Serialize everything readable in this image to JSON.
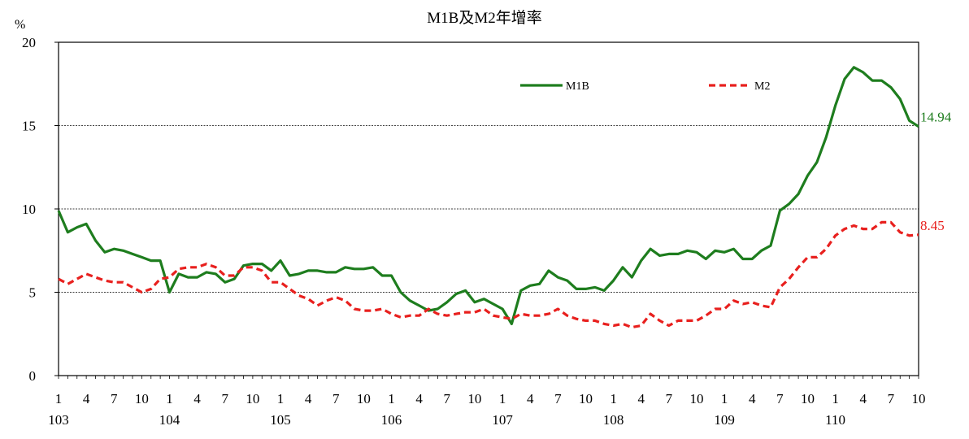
{
  "chart_data": {
    "type": "line",
    "title": "M1B及M2年增率",
    "ylabel": "%",
    "ylim": [
      0,
      20
    ],
    "yticks": [
      0,
      5,
      10,
      15,
      20
    ],
    "gridlines": [
      5,
      10,
      15
    ],
    "legend_position": "top-right",
    "month_ticks": [
      "1",
      "4",
      "7",
      "10",
      "1",
      "4",
      "7",
      "10",
      "1",
      "4",
      "7",
      "10",
      "1",
      "4",
      "7",
      "10",
      "1",
      "4",
      "7",
      "10",
      "1",
      "4",
      "7",
      "10",
      "1",
      "4",
      "7",
      "10",
      "1",
      "4",
      "7",
      "10"
    ],
    "year_labels": [
      "103",
      "104",
      "105",
      "106",
      "107",
      "108",
      "109",
      "110"
    ],
    "series": [
      {
        "name": "M1B",
        "color": "#1e7d1e",
        "style": "solid",
        "end_label": "14.94",
        "values": [
          9.9,
          8.6,
          8.9,
          9.1,
          8.1,
          7.4,
          7.6,
          7.5,
          7.3,
          7.1,
          6.9,
          6.9,
          5.0,
          6.1,
          5.9,
          5.9,
          6.2,
          6.1,
          5.6,
          5.8,
          6.6,
          6.7,
          6.7,
          6.3,
          6.9,
          6.0,
          6.1,
          6.3,
          6.3,
          6.2,
          6.2,
          6.5,
          6.4,
          6.4,
          6.5,
          6.0,
          6.0,
          5.0,
          4.5,
          4.2,
          3.9,
          4.0,
          4.4,
          4.9,
          5.1,
          4.4,
          4.6,
          4.3,
          4.0,
          3.1,
          5.1,
          5.4,
          5.5,
          6.3,
          5.9,
          5.7,
          5.2,
          5.2,
          5.3,
          5.1,
          5.7,
          6.5,
          5.9,
          6.9,
          7.6,
          7.2,
          7.3,
          7.3,
          7.5,
          7.4,
          7.0,
          7.5,
          7.4,
          7.6,
          7.0,
          7.0,
          7.5,
          7.8,
          9.9,
          10.3,
          10.9,
          12.0,
          12.8,
          14.3,
          16.2,
          17.8,
          18.5,
          18.2,
          17.7,
          17.7,
          17.3,
          16.6,
          15.3,
          14.94
        ]
      },
      {
        "name": "M2",
        "color": "#e8201e",
        "style": "dashed",
        "end_label": "8.45",
        "values": [
          5.8,
          5.5,
          5.8,
          6.1,
          5.9,
          5.7,
          5.6,
          5.6,
          5.3,
          5.0,
          5.2,
          5.8,
          5.9,
          6.4,
          6.5,
          6.5,
          6.7,
          6.5,
          6.0,
          6.0,
          6.5,
          6.5,
          6.3,
          5.6,
          5.6,
          5.2,
          4.8,
          4.6,
          4.2,
          4.5,
          4.7,
          4.5,
          4.0,
          3.9,
          3.9,
          4.0,
          3.7,
          3.5,
          3.6,
          3.6,
          4.0,
          3.7,
          3.6,
          3.7,
          3.8,
          3.8,
          4.0,
          3.6,
          3.5,
          3.4,
          3.7,
          3.6,
          3.6,
          3.7,
          4.0,
          3.6,
          3.4,
          3.3,
          3.3,
          3.1,
          3.0,
          3.1,
          2.9,
          3.0,
          3.7,
          3.3,
          3.0,
          3.3,
          3.3,
          3.3,
          3.6,
          4.0,
          4.0,
          4.5,
          4.3,
          4.4,
          4.2,
          4.1,
          5.3,
          5.8,
          6.5,
          7.1,
          7.1,
          7.6,
          8.4,
          8.8,
          9.0,
          8.8,
          8.8,
          9.2,
          9.2,
          8.6,
          8.4,
          8.45
        ]
      }
    ]
  }
}
